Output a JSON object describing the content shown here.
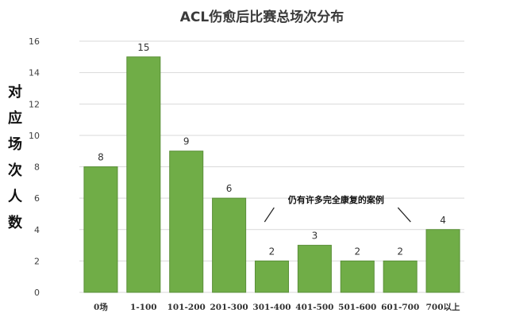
{
  "chart_data": {
    "type": "bar",
    "title": "ACL伤愈后比赛总场次分布",
    "ylabel": "对应场次人数",
    "xlabel": "",
    "categories": [
      "0场",
      "1-100",
      "101-200",
      "201-300",
      "301-400",
      "401-500",
      "501-600",
      "601-700",
      "700以上"
    ],
    "values": [
      8,
      15,
      9,
      6,
      2,
      3,
      2,
      2,
      4
    ],
    "ylim": [
      0,
      16
    ],
    "yticks": [
      0,
      2,
      4,
      6,
      8,
      10,
      12,
      14,
      16
    ],
    "grid": true,
    "bar_color": "#70ad47",
    "bar_edge_color": "#5a8f38",
    "annotation": {
      "text": "仍有许多完全康复的案例",
      "from_category": "301-400",
      "to_category": "601-700"
    }
  }
}
